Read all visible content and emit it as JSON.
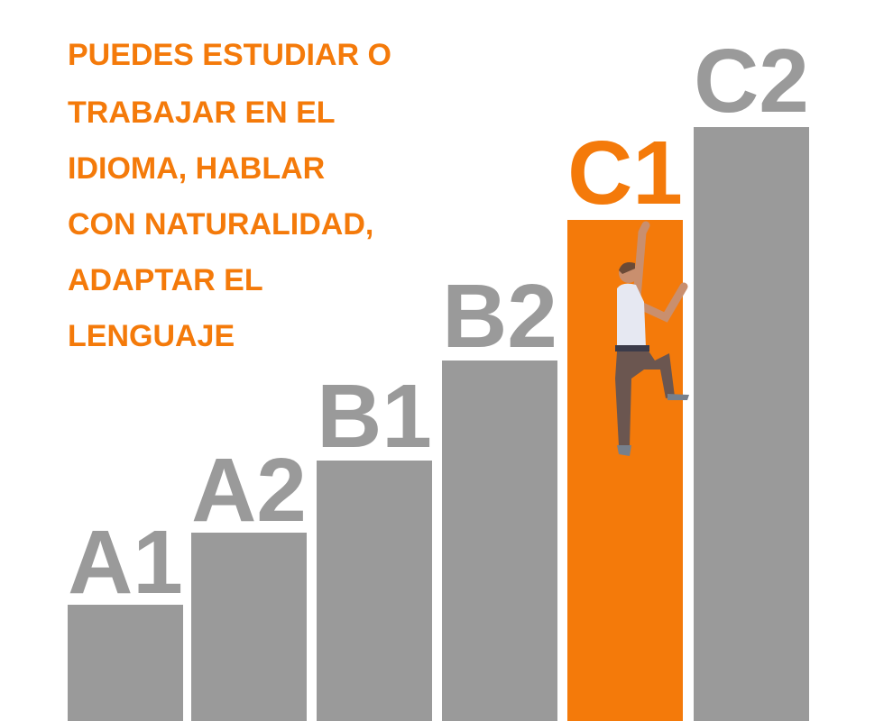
{
  "text": {
    "lines": [
      "PUEDES ESTUDIAR O",
      "TRABAJAR EN EL",
      "IDIOMA, HABLAR",
      "CON NATURALIDAD,",
      "ADAPTAR EL",
      "LENGUAJE"
    ]
  },
  "levels": [
    {
      "label": "A1"
    },
    {
      "label": "A2"
    },
    {
      "label": "B1"
    },
    {
      "label": "B2"
    },
    {
      "label": "C1"
    },
    {
      "label": "C2"
    }
  ]
}
